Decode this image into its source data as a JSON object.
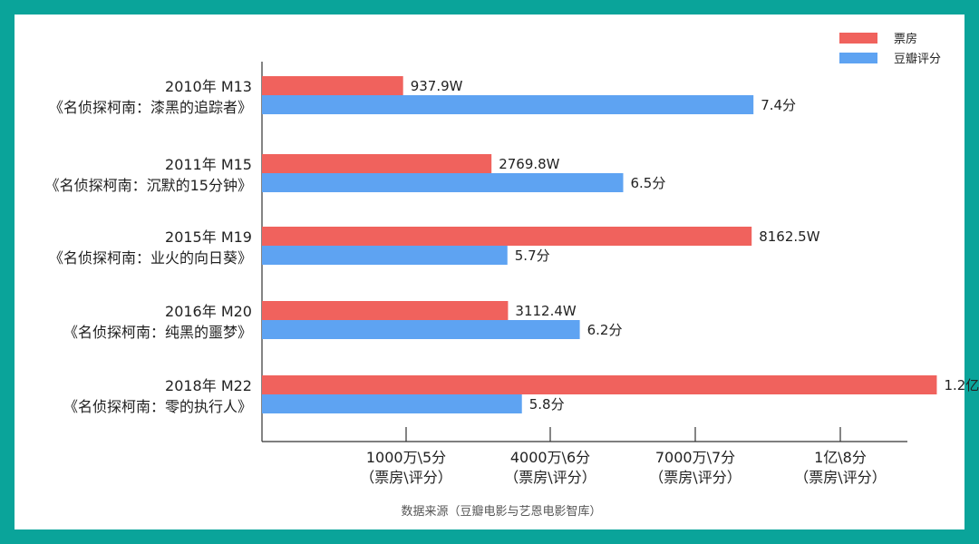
{
  "chart_data": {
    "type": "bar",
    "orientation": "horizontal",
    "categories": [
      {
        "line1": "2010年 M13",
        "line2": "《名侦探柯南：漆黑的追踪者》"
      },
      {
        "line1": "2011年 M15",
        "line2": "《名侦探柯南：沉默的15分钟》"
      },
      {
        "line1": "2015年 M19",
        "line2": "《名侦探柯南：业火的向日葵》"
      },
      {
        "line1": "2016年 M20",
        "line2": "《名侦探柯南：纯黑的噩梦》"
      },
      {
        "line1": "2018年 M22",
        "line2": "《名侦探柯南：零的执行人》"
      }
    ],
    "series": [
      {
        "name": "票房",
        "color": "#f0625d",
        "unit": "万元",
        "values": [
          937.9,
          2769.8,
          8162.5,
          3112.4,
          12000
        ],
        "labels": [
          "937.9W",
          "2769.8W",
          "8162.5W",
          "3112.4W",
          "1.2亿"
        ]
      },
      {
        "name": "豆瓣评分",
        "color": "#5ea3f2",
        "unit": "分",
        "values": [
          7.4,
          6.5,
          5.7,
          6.2,
          5.8
        ],
        "labels": [
          "7.4分",
          "6.5分",
          "5.7分",
          "6.2分",
          "5.8分"
        ]
      }
    ],
    "ticks": [
      {
        "line1": "1000万\\5分",
        "line2": "（票房\\评分）",
        "box_office": 1000,
        "score": 5
      },
      {
        "line1": "4000万\\6分",
        "line2": "（票房\\评分）",
        "box_office": 4000,
        "score": 6
      },
      {
        "line1": "7000万\\7分",
        "line2": "（票房\\评分）",
        "box_office": 7000,
        "score": 7
      },
      {
        "line1": "1亿\\8分",
        "line2": "（票房\\评分）",
        "box_office": 10000,
        "score": 8
      }
    ],
    "legend_position": "top-right",
    "grid": false
  },
  "source": "数据来源（豆瓣电影与艺恩电影智库）"
}
